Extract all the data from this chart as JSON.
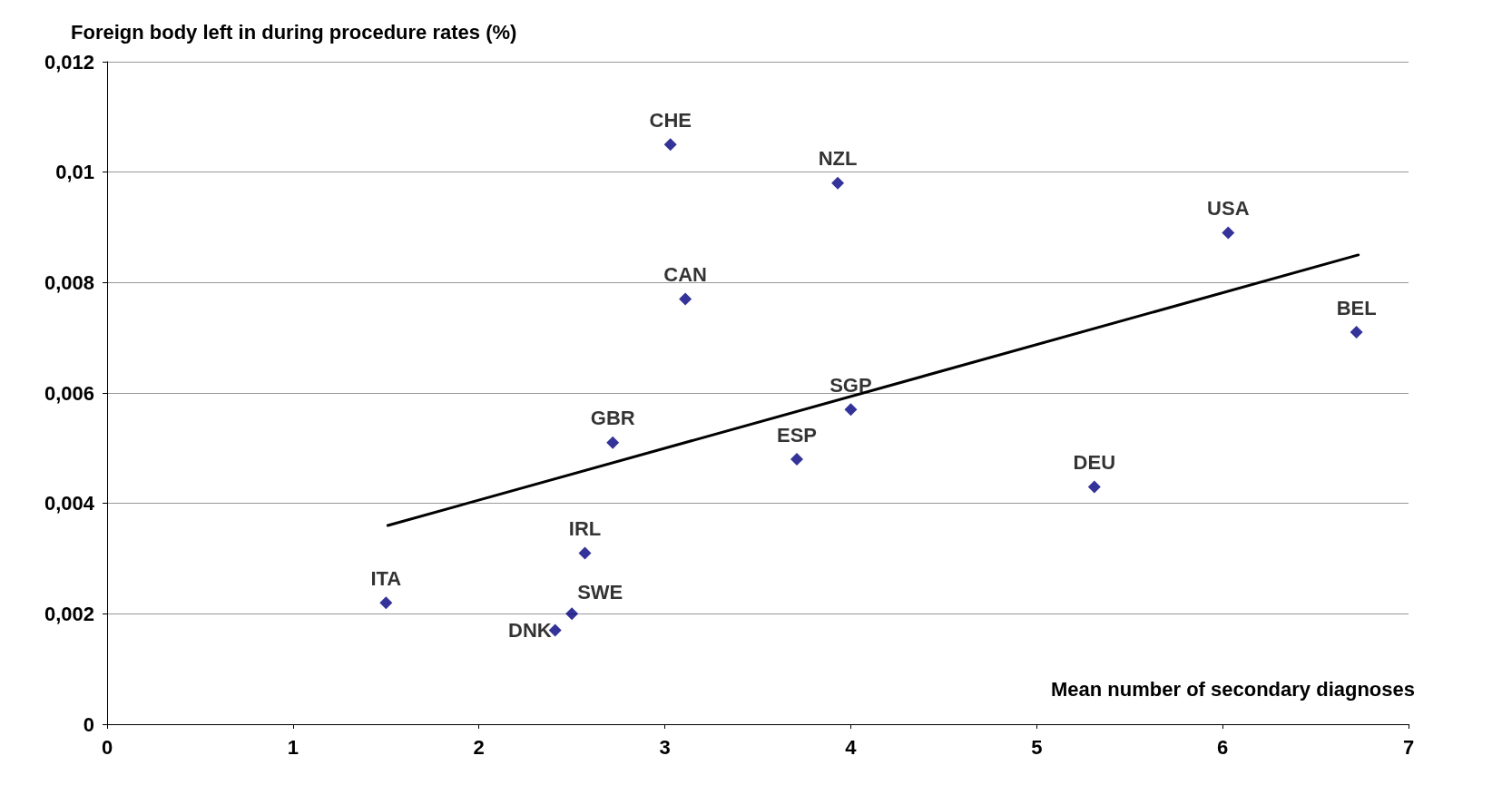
{
  "chart_data": {
    "type": "scatter",
    "xlabel": "Mean number of secondary diagnoses",
    "ylabel": "Foreign body left in during procedure rates (%)",
    "xlim": [
      0,
      7
    ],
    "xticks": [
      0,
      1,
      2,
      3,
      4,
      5,
      6,
      7
    ],
    "ylim": [
      0,
      0.012
    ],
    "yticks": [
      {
        "value": 0,
        "label": "0"
      },
      {
        "value": 0.002,
        "label": "0,002"
      },
      {
        "value": 0.004,
        "label": "0,004"
      },
      {
        "value": 0.006,
        "label": "0,006"
      },
      {
        "value": 0.008,
        "label": "0,008"
      },
      {
        "value": 0.01,
        "label": "0,01"
      },
      {
        "value": 0.012,
        "label": "0,012"
      }
    ],
    "grid": "y",
    "marker": "diamond",
    "series": [
      {
        "type": "scatter",
        "color": "#00007f",
        "x": [
          1.5,
          2.41,
          2.5,
          2.57,
          2.72,
          3.03,
          3.11,
          3.71,
          4.0,
          3.93,
          5.31,
          6.03,
          6.72
        ],
        "values": [
          0.0022,
          0.0017,
          0.002,
          0.0031,
          0.0051,
          0.0105,
          0.0077,
          0.0048,
          0.0057,
          0.0098,
          0.0043,
          0.0089,
          0.0071
        ]
      },
      {
        "type": "line",
        "color": "#000000",
        "marker": "none",
        "x": [
          1.51,
          6.73
        ],
        "values": [
          0.0036,
          0.0085
        ]
      }
    ],
    "annotations": [
      {
        "text": "ITA",
        "x": 1.5,
        "y": 0.0022
      },
      {
        "text": "DNK",
        "x": 2.41,
        "y": 0.0017
      },
      {
        "text": "SWE",
        "x": 2.5,
        "y": 0.002
      },
      {
        "text": "IRL",
        "x": 2.57,
        "y": 0.0031
      },
      {
        "text": "GBR",
        "x": 2.72,
        "y": 0.0051
      },
      {
        "text": "CHE",
        "x": 3.03,
        "y": 0.0105
      },
      {
        "text": "CAN",
        "x": 3.11,
        "y": 0.0077
      },
      {
        "text": "ESP",
        "x": 3.71,
        "y": 0.0048
      },
      {
        "text": "SGP",
        "x": 4.0,
        "y": 0.0057
      },
      {
        "text": "NZL",
        "x": 3.93,
        "y": 0.0098
      },
      {
        "text": "DEU",
        "x": 5.31,
        "y": 0.0043
      },
      {
        "text": "USA",
        "x": 6.03,
        "y": 0.0089
      },
      {
        "text": "BEL",
        "x": 6.72,
        "y": 0.0071
      }
    ]
  }
}
